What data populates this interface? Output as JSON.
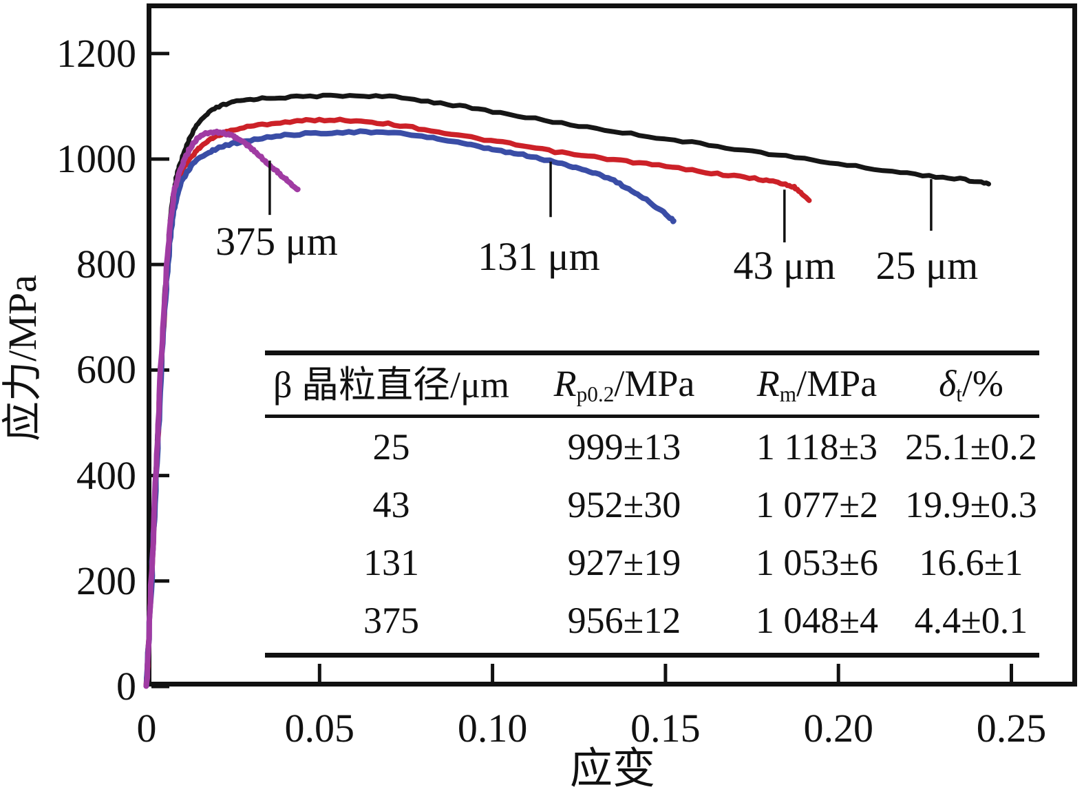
{
  "chart_data": {
    "type": "line",
    "title": "",
    "xlabel": "应变",
    "ylabel": "应力/MPa",
    "xlim": [
      0,
      0.269
    ],
    "ylim": [
      0,
      1295
    ],
    "grid": false,
    "axis_color": "#111111",
    "x_ticks": [
      0,
      0.05,
      0.1,
      0.15,
      0.2,
      0.25
    ],
    "x_tick_labels": [
      "0",
      "0.05",
      "0.10",
      "0.15",
      "0.20",
      "0.25"
    ],
    "y_ticks": [
      0,
      200,
      400,
      600,
      800,
      1000,
      1200
    ],
    "y_tick_labels": [
      "0",
      "200",
      "400",
      "600",
      "800",
      "1000",
      "1200"
    ],
    "series": [
      {
        "name": "25 μm",
        "color": "#161616",
        "stroke_width": 7,
        "points": [
          [
            0,
            0
          ],
          [
            0.0015,
            220
          ],
          [
            0.003,
            440
          ],
          [
            0.0045,
            650
          ],
          [
            0.006,
            810
          ],
          [
            0.0075,
            920
          ],
          [
            0.009,
            975
          ],
          [
            0.011,
            1015
          ],
          [
            0.014,
            1058
          ],
          [
            0.018,
            1088
          ],
          [
            0.023,
            1104
          ],
          [
            0.03,
            1113
          ],
          [
            0.04,
            1117
          ],
          [
            0.055,
            1120
          ],
          [
            0.07,
            1118
          ],
          [
            0.085,
            1106
          ],
          [
            0.1,
            1090
          ],
          [
            0.12,
            1068
          ],
          [
            0.14,
            1048
          ],
          [
            0.16,
            1029
          ],
          [
            0.18,
            1010
          ],
          [
            0.2,
            991
          ],
          [
            0.22,
            973
          ],
          [
            0.235,
            962
          ],
          [
            0.2435,
            953
          ]
        ]
      },
      {
        "name": "43 μm",
        "color": "#cc2128",
        "stroke_width": 7.5,
        "points": [
          [
            0,
            0
          ],
          [
            0.0015,
            215
          ],
          [
            0.003,
            430
          ],
          [
            0.0045,
            640
          ],
          [
            0.006,
            795
          ],
          [
            0.0075,
            900
          ],
          [
            0.009,
            950
          ],
          [
            0.011,
            985
          ],
          [
            0.014,
            1013
          ],
          [
            0.018,
            1035
          ],
          [
            0.023,
            1051
          ],
          [
            0.03,
            1062
          ],
          [
            0.04,
            1070
          ],
          [
            0.05,
            1074
          ],
          [
            0.062,
            1072
          ],
          [
            0.075,
            1062
          ],
          [
            0.09,
            1045
          ],
          [
            0.105,
            1029
          ],
          [
            0.12,
            1012
          ],
          [
            0.135,
            999
          ],
          [
            0.15,
            986
          ],
          [
            0.165,
            972
          ],
          [
            0.177,
            962
          ],
          [
            0.184,
            953
          ],
          [
            0.188,
            943
          ],
          [
            0.1915,
            922
          ]
        ]
      },
      {
        "name": "131 μm",
        "color": "#3a4da6",
        "stroke_width": 8,
        "points": [
          [
            0,
            0
          ],
          [
            0.0015,
            210
          ],
          [
            0.003,
            425
          ],
          [
            0.0045,
            630
          ],
          [
            0.006,
            785
          ],
          [
            0.0075,
            885
          ],
          [
            0.009,
            935
          ],
          [
            0.011,
            968
          ],
          [
            0.014,
            995
          ],
          [
            0.018,
            1013
          ],
          [
            0.023,
            1026
          ],
          [
            0.03,
            1036
          ],
          [
            0.04,
            1045
          ],
          [
            0.052,
            1050
          ],
          [
            0.065,
            1051
          ],
          [
            0.078,
            1045
          ],
          [
            0.09,
            1031
          ],
          [
            0.1,
            1018
          ],
          [
            0.11,
            1006
          ],
          [
            0.12,
            991
          ],
          [
            0.128,
            977
          ],
          [
            0.135,
            959
          ],
          [
            0.142,
            933
          ],
          [
            0.148,
            906
          ],
          [
            0.1525,
            881
          ]
        ]
      },
      {
        "name": "375 μm",
        "color": "#a03ba3",
        "stroke_width": 8,
        "points": [
          [
            0,
            0
          ],
          [
            0.0015,
            220
          ],
          [
            0.003,
            440
          ],
          [
            0.0045,
            655
          ],
          [
            0.006,
            815
          ],
          [
            0.0075,
            915
          ],
          [
            0.009,
            965
          ],
          [
            0.011,
            1000
          ],
          [
            0.013,
            1025
          ],
          [
            0.015,
            1041
          ],
          [
            0.017,
            1048
          ],
          [
            0.02,
            1051
          ],
          [
            0.023,
            1048
          ],
          [
            0.026,
            1040
          ],
          [
            0.029,
            1027
          ],
          [
            0.032,
            1010
          ],
          [
            0.035,
            992
          ],
          [
            0.038,
            975
          ],
          [
            0.041,
            958
          ],
          [
            0.0437,
            942
          ]
        ]
      }
    ],
    "annotations": [
      {
        "text": "375 μm",
        "line_x": 0.0356,
        "line_y_from": 997,
        "line_y_to": 894,
        "label_x": 0.0376,
        "label_y": 843
      },
      {
        "text": "131 μm",
        "line_x": 0.1168,
        "line_y_from": 995,
        "line_y_to": 890,
        "label_x": 0.1134,
        "label_y": 815
      },
      {
        "text": "43 μm",
        "line_x": 0.1844,
        "line_y_from": 942,
        "line_y_to": 842,
        "label_x": 0.1844,
        "label_y": 798
      },
      {
        "text": "25 μm",
        "line_x": 0.2268,
        "line_y_from": 962,
        "line_y_to": 864,
        "label_x": 0.2256,
        "label_y": 798
      }
    ]
  },
  "table": {
    "headers": [
      {
        "text": "β 晶粒直径/μm"
      },
      {
        "symbol": "R",
        "sub": "p0.2",
        "unit": "/MPa"
      },
      {
        "symbol": "R",
        "sub": "m",
        "unit": "/MPa"
      },
      {
        "symbol": "δ",
        "sub": "t",
        "unit": "/%"
      }
    ],
    "rows": [
      [
        "25",
        "999±13",
        "1 118±3",
        "25.1±0.2"
      ],
      [
        "43",
        "952±30",
        "1 077±2",
        "19.9±0.3"
      ],
      [
        "131",
        "927±19",
        "1 053±6",
        "16.6±1"
      ],
      [
        "375",
        "956±12",
        "1 048±4",
        "4.4±0.1"
      ]
    ]
  }
}
